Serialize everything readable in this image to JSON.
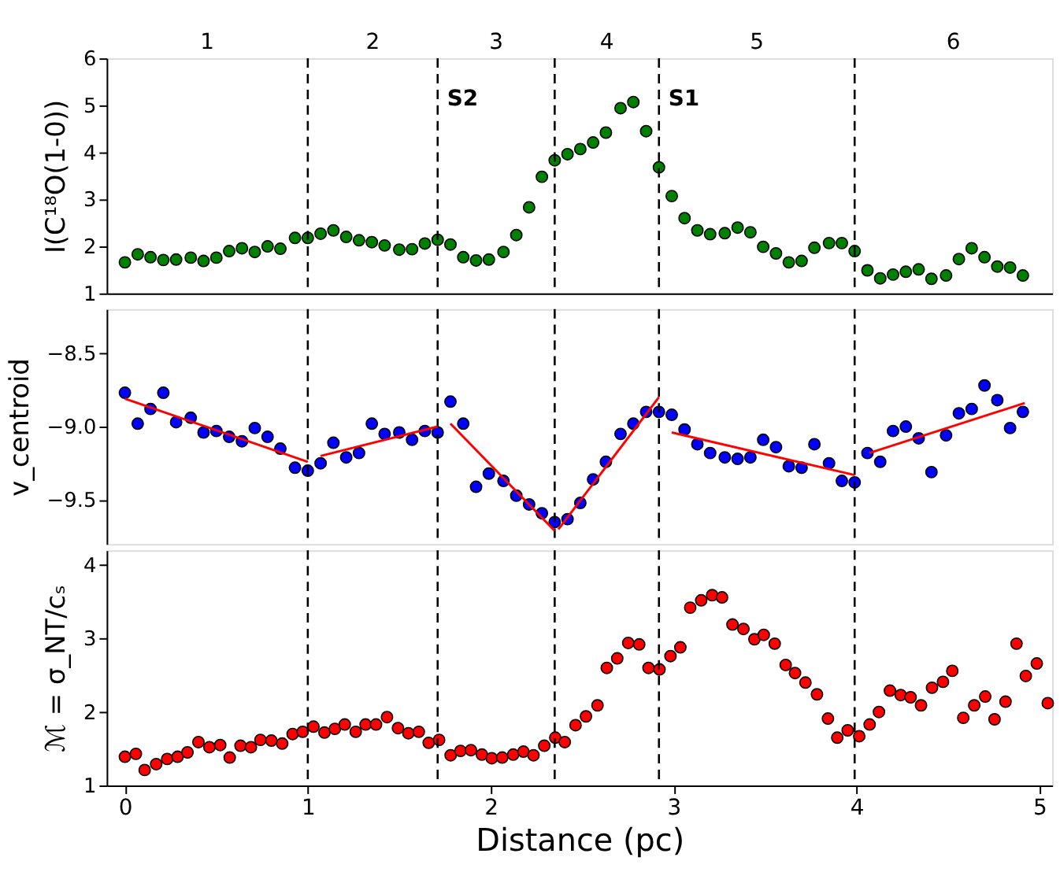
{
  "chart_data": [
    {
      "type": "scatter",
      "ylabel": "I(C¹⁸O(1-0))",
      "x": [
        0,
        0.07,
        0.14,
        0.21,
        0.28,
        0.36,
        0.43,
        0.5,
        0.57,
        0.64,
        0.71,
        0.78,
        0.85,
        0.93,
        1.0,
        1.07,
        1.14,
        1.21,
        1.28,
        1.35,
        1.42,
        1.5,
        1.57,
        1.64,
        1.71,
        1.78,
        1.85,
        1.92,
        1.99,
        2.07,
        2.14,
        2.21,
        2.28,
        2.35,
        2.42,
        2.49,
        2.56,
        2.63,
        2.71,
        2.78,
        2.85,
        2.92,
        2.99,
        3.06,
        3.13,
        3.2,
        3.28,
        3.35,
        3.42,
        3.49,
        3.56,
        3.63,
        3.7,
        3.77,
        3.85,
        3.92,
        3.99,
        4.06,
        4.13,
        4.2,
        4.27,
        4.34,
        4.41,
        4.49,
        4.56,
        4.63,
        4.7,
        4.77,
        4.84,
        4.91
      ],
      "series": [
        {
          "color": "#008000",
          "values": [
            1.66,
            1.83,
            1.77,
            1.71,
            1.72,
            1.76,
            1.69,
            1.76,
            1.9,
            1.96,
            1.88,
            2.0,
            1.95,
            2.18,
            2.18,
            2.27,
            2.34,
            2.2,
            2.13,
            2.09,
            2.02,
            1.93,
            1.94,
            2.06,
            2.14,
            2.04,
            1.77,
            1.7,
            1.72,
            1.88,
            2.24,
            2.83,
            3.48,
            3.83,
            3.96,
            4.07,
            4.21,
            4.42,
            4.94,
            5.07,
            4.45,
            3.68,
            3.07,
            2.6,
            2.34,
            2.26,
            2.28,
            2.4,
            2.3,
            1.99,
            1.85,
            1.66,
            1.69,
            1.97,
            2.07,
            2.07,
            1.9,
            1.49,
            1.32,
            1.4,
            1.46,
            1.51,
            1.31,
            1.38,
            1.73,
            1.96,
            1.77,
            1.57,
            1.55,
            1.38
          ]
        }
      ],
      "xlim": [
        -0.1,
        5.07
      ],
      "ylim": [
        1,
        6
      ],
      "yticks": [
        1,
        2,
        3,
        4,
        5,
        6
      ],
      "tick_labels": "y",
      "marker": "circle",
      "grid": false,
      "ref_lines": [
        {
          "axis": "x",
          "value": 1.0,
          "line_style": "dashed",
          "color": "#000000"
        },
        {
          "axis": "x",
          "value": 1.71,
          "line_style": "dashed",
          "color": "#000000",
          "label": "S2"
        },
        {
          "axis": "x",
          "value": 2.35,
          "line_style": "dashed",
          "color": "#000000"
        },
        {
          "axis": "x",
          "value": 2.92,
          "line_style": "dashed",
          "color": "#000000",
          "label": "S1"
        },
        {
          "axis": "x",
          "value": 3.99,
          "line_style": "dashed",
          "color": "#000000"
        }
      ],
      "annotations": [
        "1",
        "2",
        "3",
        "4",
        "5",
        "6"
      ]
    },
    {
      "type": "scatter",
      "ylabel": "v_centroid",
      "x": [
        0,
        0.07,
        0.14,
        0.21,
        0.28,
        0.36,
        0.43,
        0.5,
        0.57,
        0.64,
        0.71,
        0.78,
        0.85,
        0.93,
        1.0,
        1.07,
        1.14,
        1.21,
        1.28,
        1.35,
        1.42,
        1.5,
        1.57,
        1.64,
        1.71,
        1.78,
        1.85,
        1.92,
        1.99,
        2.07,
        2.14,
        2.21,
        2.28,
        2.35,
        2.42,
        2.49,
        2.56,
        2.63,
        2.71,
        2.78,
        2.85,
        2.92,
        2.99,
        3.06,
        3.13,
        3.2,
        3.28,
        3.35,
        3.42,
        3.49,
        3.56,
        3.63,
        3.7,
        3.77,
        3.85,
        3.92,
        3.99,
        4.06,
        4.13,
        4.2,
        4.27,
        4.34,
        4.41,
        4.49,
        4.56,
        4.63,
        4.7,
        4.77,
        4.84,
        4.91
      ],
      "series": [
        {
          "color": "#0000ff",
          "values": [
            -8.77,
            -8.98,
            -8.88,
            -8.77,
            -8.97,
            -8.94,
            -9.04,
            -9.03,
            -9.07,
            -9.1,
            -9.01,
            -9.07,
            -9.15,
            -9.28,
            -9.3,
            -9.25,
            -9.11,
            -9.21,
            -9.18,
            -8.98,
            -9.05,
            -9.04,
            -9.09,
            -9.03,
            -9.04,
            -8.83,
            -8.98,
            -9.41,
            -9.32,
            -9.37,
            -9.47,
            -9.53,
            -9.59,
            -9.65,
            -9.63,
            -9.52,
            -9.36,
            -9.24,
            -9.05,
            -8.98,
            -8.9,
            -8.9,
            -8.92,
            -9.02,
            -9.12,
            -9.18,
            -9.21,
            -9.22,
            -9.21,
            -9.09,
            -9.14,
            -9.27,
            -9.28,
            -9.12,
            -9.25,
            -9.37,
            -9.38,
            -9.18,
            -9.24,
            -9.03,
            -9.0,
            -9.08,
            -9.31,
            -9.06,
            -8.91,
            -8.88,
            -8.72,
            -8.82,
            -9.01,
            -8.9
          ]
        },
        {
          "type": "line",
          "marker": "none",
          "color": "#ff0000",
          "x": [
            0,
            1.0
          ],
          "values": [
            -8.81,
            -9.24
          ]
        },
        {
          "type": "line",
          "marker": "none",
          "color": "#ff0000",
          "x": [
            1.07,
            1.71
          ],
          "values": [
            -9.2,
            -9.0
          ]
        },
        {
          "type": "line",
          "marker": "none",
          "color": "#ff0000",
          "x": [
            1.78,
            2.35
          ],
          "values": [
            -8.98,
            -9.71
          ]
        },
        {
          "type": "line",
          "marker": "none",
          "color": "#ff0000",
          "x": [
            2.37,
            2.92
          ],
          "values": [
            -9.7,
            -8.8
          ]
        },
        {
          "type": "line",
          "marker": "none",
          "color": "#ff0000",
          "x": [
            2.99,
            3.99
          ],
          "values": [
            -9.04,
            -9.33
          ]
        },
        {
          "type": "line",
          "marker": "none",
          "color": "#ff0000",
          "x": [
            4.07,
            4.92
          ],
          "values": [
            -9.18,
            -8.84
          ]
        }
      ],
      "xlim": [
        -0.1,
        5.07
      ],
      "ylim": [
        -9.8,
        -8.2
      ],
      "yticks": [
        {
          "value": -8.5,
          "label": "−8.5"
        },
        {
          "value": -9.0,
          "label": "−9.0"
        },
        {
          "value": -9.5,
          "label": "−9.5"
        }
      ],
      "tick_labels": "y",
      "marker": "circle",
      "line_style": "solid",
      "grid": false,
      "ref_lines": [
        {
          "axis": "x",
          "value": 1.0,
          "line_style": "dashed",
          "color": "#000000"
        },
        {
          "axis": "x",
          "value": 1.71,
          "line_style": "dashed",
          "color": "#000000"
        },
        {
          "axis": "x",
          "value": 2.35,
          "line_style": "dashed",
          "color": "#000000"
        },
        {
          "axis": "x",
          "value": 2.92,
          "line_style": "dashed",
          "color": "#000000"
        },
        {
          "axis": "x",
          "value": 3.99,
          "line_style": "dashed",
          "color": "#000000"
        }
      ]
    },
    {
      "type": "scatter",
      "ylabel": "ℳ = σ_NT/cₛ",
      "xlabel": "Distance (pc)",
      "x": [
        0.0,
        0.06,
        0.108,
        0.171,
        0.231,
        0.288,
        0.342,
        0.402,
        0.462,
        0.521,
        0.573,
        0.632,
        0.689,
        0.741,
        0.801,
        0.86,
        0.917,
        0.972,
        1.031,
        1.091,
        1.148,
        1.202,
        1.262,
        1.316,
        1.373,
        1.433,
        1.493,
        1.55,
        1.607,
        1.661,
        1.718,
        1.781,
        1.835,
        1.892,
        1.952,
        2.006,
        2.063,
        2.123,
        2.179,
        2.234,
        2.293,
        2.353,
        2.405,
        2.464,
        2.521,
        2.584,
        2.635,
        2.692,
        2.752,
        2.812,
        2.863,
        2.923,
        2.983,
        3.037,
        3.091,
        3.151,
        3.211,
        3.265,
        3.322,
        3.382,
        3.442,
        3.493,
        3.553,
        3.613,
        3.664,
        3.721,
        3.784,
        3.844,
        3.895,
        3.952,
        4.015,
        4.072,
        4.123,
        4.183,
        4.242,
        4.296,
        4.353,
        4.413,
        4.473,
        4.524,
        4.584,
        4.644,
        4.704,
        4.755,
        4.815,
        4.875,
        4.926,
        4.986,
        5.046
      ],
      "series": [
        {
          "color": "#ff0000",
          "values": [
            1.39,
            1.43,
            1.21,
            1.29,
            1.36,
            1.39,
            1.45,
            1.59,
            1.52,
            1.55,
            1.38,
            1.54,
            1.52,
            1.62,
            1.61,
            1.57,
            1.7,
            1.73,
            1.8,
            1.72,
            1.77,
            1.83,
            1.73,
            1.83,
            1.83,
            1.93,
            1.78,
            1.71,
            1.73,
            1.58,
            1.62,
            1.41,
            1.47,
            1.48,
            1.42,
            1.37,
            1.38,
            1.42,
            1.46,
            1.41,
            1.54,
            1.65,
            1.59,
            1.82,
            1.94,
            2.09,
            2.6,
            2.73,
            2.94,
            2.92,
            2.6,
            2.58,
            2.76,
            2.88,
            3.42,
            3.52,
            3.59,
            3.56,
            3.19,
            3.13,
            2.99,
            3.05,
            2.93,
            2.64,
            2.53,
            2.4,
            2.24,
            1.91,
            1.65,
            1.75,
            1.67,
            1.83,
            2.0,
            2.29,
            2.23,
            2.2,
            2.09,
            2.33,
            2.41,
            2.56,
            1.92,
            2.09,
            2.21,
            1.9,
            2.14,
            2.93,
            2.49,
            2.66,
            2.12
          ]
        }
      ],
      "xlim": [
        -0.1,
        5.07
      ],
      "xticks": [
        0,
        1,
        2,
        3,
        4,
        5
      ],
      "ylim": [
        1,
        4.2
      ],
      "yticks": [
        1,
        2,
        3,
        4
      ],
      "marker": "circle",
      "grid": false,
      "ref_lines": [
        {
          "axis": "x",
          "value": 1.0,
          "line_style": "dashed",
          "color": "#000000"
        },
        {
          "axis": "x",
          "value": 1.71,
          "line_style": "dashed",
          "color": "#000000"
        },
        {
          "axis": "x",
          "value": 2.35,
          "line_style": "dashed",
          "color": "#000000"
        },
        {
          "axis": "x",
          "value": 2.92,
          "line_style": "dashed",
          "color": "#000000"
        },
        {
          "axis": "x",
          "value": 3.99,
          "line_style": "dashed",
          "color": "#000000"
        }
      ]
    }
  ]
}
